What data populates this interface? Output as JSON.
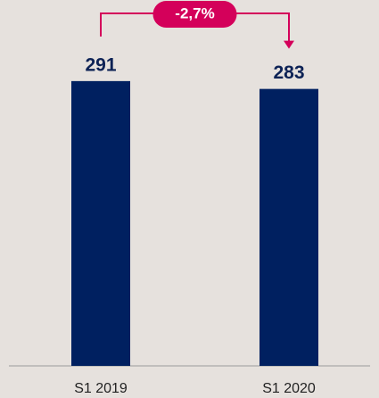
{
  "chart_data": {
    "type": "bar",
    "categories": [
      "S1 2019",
      "S1 2020"
    ],
    "values": [
      291,
      283
    ],
    "color": "#002060",
    "ylim": [
      0,
      300
    ],
    "annotation": "-2,7%",
    "annotation_color": "#d4005a"
  }
}
